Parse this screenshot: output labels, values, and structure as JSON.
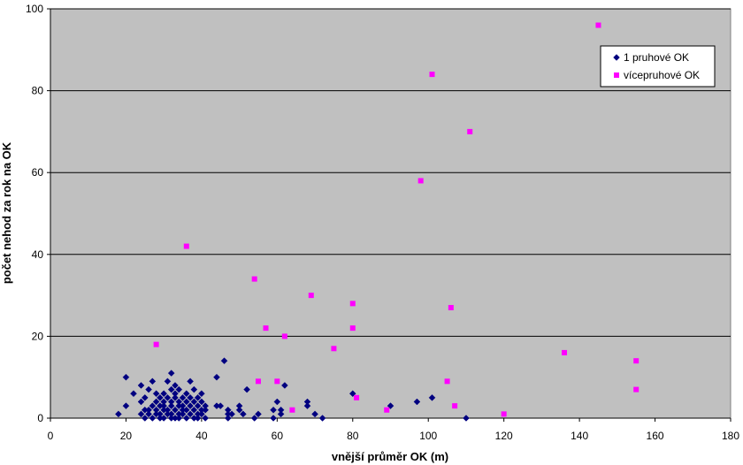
{
  "chart_data": {
    "type": "scatter",
    "xlabel": "vnější průměr OK (m)",
    "ylabel": "počet nehod za rok na OK",
    "xlim": [
      0,
      180
    ],
    "ylim": [
      0,
      100
    ],
    "x_ticks": [
      0,
      20,
      40,
      60,
      80,
      100,
      120,
      140,
      160,
      180
    ],
    "y_ticks": [
      0,
      20,
      40,
      60,
      80,
      100
    ],
    "grid": "horizontal",
    "plot_background": "#c0c0c0",
    "legend_position": "top-right",
    "series": [
      {
        "name": "1 pruhové OK",
        "marker": "diamond",
        "color": "#000080",
        "points": [
          [
            18,
            1
          ],
          [
            20,
            10
          ],
          [
            20,
            3
          ],
          [
            22,
            6
          ],
          [
            24,
            1
          ],
          [
            24,
            4
          ],
          [
            24,
            8
          ],
          [
            25,
            0
          ],
          [
            25,
            2
          ],
          [
            25,
            5
          ],
          [
            26,
            1
          ],
          [
            26,
            7
          ],
          [
            26,
            2
          ],
          [
            27,
            9
          ],
          [
            27,
            0
          ],
          [
            27,
            3
          ],
          [
            28,
            1
          ],
          [
            28,
            4
          ],
          [
            28,
            2
          ],
          [
            28,
            6
          ],
          [
            29,
            0
          ],
          [
            29,
            3
          ],
          [
            29,
            5
          ],
          [
            29,
            1
          ],
          [
            30,
            2
          ],
          [
            30,
            4
          ],
          [
            30,
            0
          ],
          [
            30,
            6
          ],
          [
            30,
            3
          ],
          [
            31,
            1
          ],
          [
            31,
            9
          ],
          [
            31,
            5
          ],
          [
            31,
            2
          ],
          [
            32,
            0
          ],
          [
            32,
            3
          ],
          [
            32,
            7
          ],
          [
            32,
            11
          ],
          [
            32,
            4
          ],
          [
            32,
            1
          ],
          [
            33,
            2
          ],
          [
            33,
            6
          ],
          [
            33,
            8
          ],
          [
            33,
            0
          ],
          [
            33,
            5
          ],
          [
            34,
            1
          ],
          [
            34,
            3
          ],
          [
            34,
            4
          ],
          [
            34,
            7
          ],
          [
            34,
            0
          ],
          [
            35,
            2
          ],
          [
            35,
            5
          ],
          [
            35,
            1
          ],
          [
            35,
            3
          ],
          [
            36,
            0
          ],
          [
            36,
            4
          ],
          [
            36,
            6
          ],
          [
            36,
            2
          ],
          [
            37,
            1
          ],
          [
            37,
            3
          ],
          [
            37,
            9
          ],
          [
            37,
            5
          ],
          [
            38,
            0
          ],
          [
            38,
            2
          ],
          [
            38,
            4
          ],
          [
            38,
            7
          ],
          [
            39,
            1
          ],
          [
            39,
            3
          ],
          [
            39,
            5
          ],
          [
            39,
            0
          ],
          [
            40,
            2
          ],
          [
            40,
            6
          ],
          [
            40,
            4
          ],
          [
            40,
            1
          ],
          [
            41,
            0
          ],
          [
            41,
            3
          ],
          [
            41,
            2
          ],
          [
            44,
            10
          ],
          [
            44,
            3
          ],
          [
            45,
            3
          ],
          [
            46,
            14
          ],
          [
            47,
            0
          ],
          [
            47,
            2
          ],
          [
            47,
            1
          ],
          [
            48,
            1
          ],
          [
            50,
            3
          ],
          [
            50,
            2
          ],
          [
            51,
            1
          ],
          [
            52,
            7
          ],
          [
            54,
            0
          ],
          [
            55,
            1
          ],
          [
            59,
            2
          ],
          [
            59,
            0
          ],
          [
            60,
            4
          ],
          [
            61,
            2
          ],
          [
            61,
            1
          ],
          [
            62,
            8
          ],
          [
            68,
            4
          ],
          [
            68,
            3
          ],
          [
            70,
            1
          ],
          [
            72,
            0
          ],
          [
            80,
            6
          ],
          [
            90,
            3
          ],
          [
            97,
            4
          ],
          [
            101,
            5
          ],
          [
            110,
            0
          ]
        ]
      },
      {
        "name": "vícepruhové OK",
        "marker": "square",
        "color": "#ff00ff",
        "points": [
          [
            28,
            18
          ],
          [
            36,
            42
          ],
          [
            54,
            34
          ],
          [
            55,
            9
          ],
          [
            57,
            22
          ],
          [
            60,
            9
          ],
          [
            62,
            20
          ],
          [
            64,
            2
          ],
          [
            69,
            30
          ],
          [
            75,
            17
          ],
          [
            80,
            28
          ],
          [
            80,
            22
          ],
          [
            81,
            5
          ],
          [
            89,
            2
          ],
          [
            98,
            58
          ],
          [
            101,
            84
          ],
          [
            105,
            9
          ],
          [
            106,
            27
          ],
          [
            107,
            3
          ],
          [
            111,
            70
          ],
          [
            120,
            1
          ],
          [
            136,
            16
          ],
          [
            145,
            96
          ],
          [
            155,
            14
          ],
          [
            155,
            7
          ]
        ]
      }
    ]
  }
}
